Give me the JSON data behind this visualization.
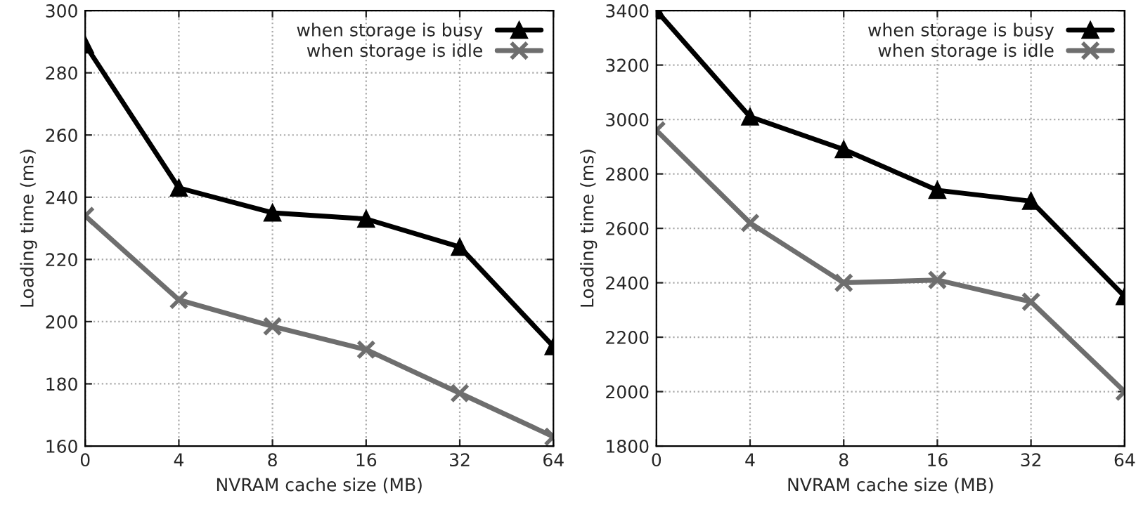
{
  "chart_data": [
    {
      "type": "line",
      "xlabel": "NVRAM cache size (MB)",
      "ylabel": "Loading time (ms)",
      "categories": [
        "0",
        "4",
        "8",
        "16",
        "32",
        "64"
      ],
      "ylim": [
        160,
        300
      ],
      "yticks": [
        160,
        180,
        200,
        220,
        240,
        260,
        280,
        300
      ],
      "grid": true,
      "legend": "top right",
      "series": [
        {
          "name": "when storage is busy",
          "color": "#000000",
          "marker": "triangle",
          "values": [
            289,
            243,
            235,
            233,
            224,
            192
          ]
        },
        {
          "name": "when storage is idle",
          "color": "#6e6e6e",
          "marker": "cross",
          "values": [
            234,
            207,
            198.5,
            191,
            177,
            163
          ]
        }
      ]
    },
    {
      "type": "line",
      "xlabel": "NVRAM cache size (MB)",
      "ylabel": "Loading time (ms)",
      "categories": [
        "0",
        "4",
        "8",
        "16",
        "32",
        "64"
      ],
      "ylim": [
        1800,
        3400
      ],
      "yticks": [
        1800,
        2000,
        2200,
        2400,
        2600,
        2800,
        3000,
        3200,
        3400
      ],
      "grid": true,
      "legend": "top right",
      "series": [
        {
          "name": "when storage is busy",
          "color": "#000000",
          "marker": "triangle",
          "values": [
            3400,
            3010,
            2890,
            2740,
            2700,
            2350
          ]
        },
        {
          "name": "when storage is idle",
          "color": "#6e6e6e",
          "marker": "cross",
          "values": [
            2960,
            2620,
            2400,
            2410,
            2330,
            2000
          ]
        }
      ]
    }
  ]
}
